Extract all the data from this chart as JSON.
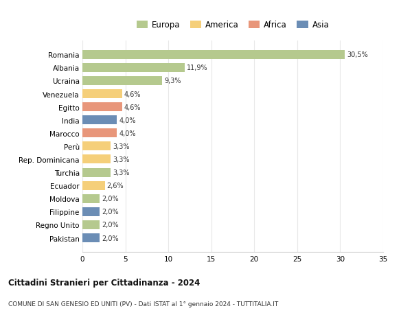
{
  "countries": [
    "Romania",
    "Albania",
    "Ucraina",
    "Venezuela",
    "Egitto",
    "India",
    "Marocco",
    "Perù",
    "Rep. Dominicana",
    "Turchia",
    "Ecuador",
    "Moldova",
    "Filippine",
    "Regno Unito",
    "Pakistan"
  ],
  "values": [
    30.5,
    11.9,
    9.3,
    4.6,
    4.6,
    4.0,
    4.0,
    3.3,
    3.3,
    3.3,
    2.6,
    2.0,
    2.0,
    2.0,
    2.0
  ],
  "labels": [
    "30,5%",
    "11,9%",
    "9,3%",
    "4,6%",
    "4,6%",
    "4,0%",
    "4,0%",
    "3,3%",
    "3,3%",
    "3,3%",
    "2,6%",
    "2,0%",
    "2,0%",
    "2,0%",
    "2,0%"
  ],
  "categories": [
    "Europa",
    "America",
    "Africa",
    "Asia"
  ],
  "bar_colors": [
    "#b5c98e",
    "#b5c98e",
    "#b5c98e",
    "#f5cf7a",
    "#e8967a",
    "#6b8db5",
    "#e8967a",
    "#f5cf7a",
    "#f5cf7a",
    "#b5c98e",
    "#f5cf7a",
    "#b5c98e",
    "#6b8db5",
    "#b5c98e",
    "#6b8db5"
  ],
  "legend_colors": [
    "#b5c98e",
    "#f5cf7a",
    "#e8967a",
    "#6b8db5"
  ],
  "title1": "Cittadini Stranieri per Cittadinanza - 2024",
  "title2": "COMUNE DI SAN GENESIO ED UNITI (PV) - Dati ISTAT al 1° gennaio 2024 - TUTTITALIA.IT",
  "xlim": [
    0,
    35
  ],
  "xticks": [
    0,
    5,
    10,
    15,
    20,
    25,
    30,
    35
  ],
  "background_color": "#ffffff",
  "grid_color": "#e8e8e8"
}
